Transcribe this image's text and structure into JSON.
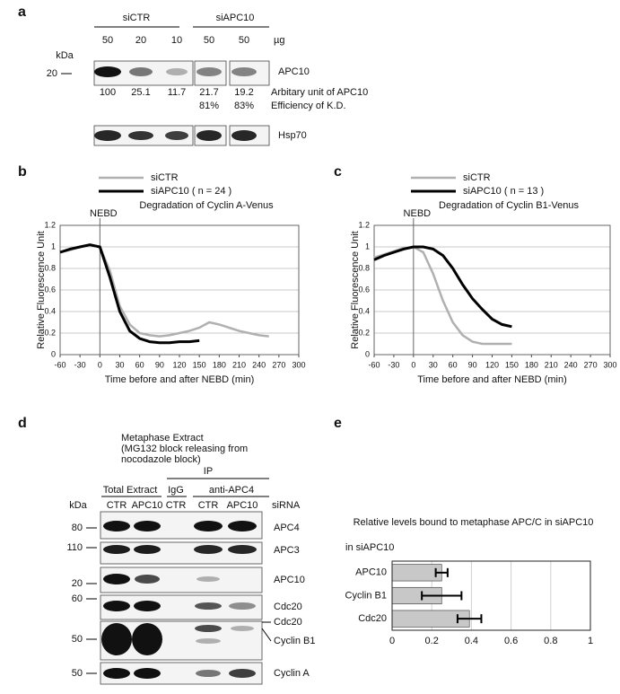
{
  "panel_labels": [
    "a",
    "b",
    "c",
    "d",
    "e"
  ],
  "blot_a": {
    "groups": [
      "siCTR",
      "siAPC10"
    ],
    "lanes": [
      "50",
      "20",
      "10",
      "50",
      "50"
    ],
    "unit": "µg",
    "kda": "kDa",
    "marker": "20",
    "target": "APC10",
    "quant": [
      "100",
      "25.1",
      "11.7",
      "21.7",
      "19.2"
    ],
    "quant_label": "Arbitary unit of APC10",
    "efficiency": [
      "81%",
      "83%"
    ],
    "efficiency_label": "Efficiency of K.D.",
    "loading": "Hsp70"
  },
  "blot_d": {
    "title": [
      "Metaphase Extract",
      "(MG132 block releasing from",
      "nocodazole block)"
    ],
    "ip": "IP",
    "headers": [
      "Total Extract",
      "IgG",
      "anti-APC4"
    ],
    "lanes": [
      "CTR",
      "APC10",
      "CTR",
      "CTR",
      "APC10"
    ],
    "sirna": "siRNA",
    "kda": "kDa",
    "rows": [
      {
        "label": "APC4",
        "marker": "80"
      },
      {
        "label": "APC3",
        "marker": "110"
      },
      {
        "label": "APC10",
        "marker": "20"
      },
      {
        "label": "Cdc20",
        "marker": "60"
      },
      {
        "label": "Cdc20"
      },
      {
        "label": "Cyclin B1",
        "marker": "50"
      },
      {
        "label": "Cyclin A",
        "marker": "50"
      }
    ]
  },
  "chart_data": [
    {
      "type": "line",
      "title": "Degradation of Cyclin A-Venus",
      "annotation": {
        "text": "NEBD",
        "x": 0
      },
      "xlabel": "Time before and after NEBD (min)",
      "ylabel": "Relative Fluorescence Unit",
      "x": [
        -60,
        -45,
        -30,
        -15,
        0,
        15,
        30,
        45,
        60,
        75,
        90,
        105,
        120,
        135,
        150,
        165,
        180,
        195,
        210,
        225,
        240,
        255,
        270
      ],
      "xlim": [
        -60,
        300
      ],
      "xticks": [
        -60,
        -30,
        0,
        30,
        60,
        90,
        120,
        150,
        180,
        210,
        240,
        270,
        300
      ],
      "ylim": [
        0,
        1.2
      ],
      "yticks": [
        0,
        0.2,
        0.4,
        0.6,
        0.8,
        1,
        1.2
      ],
      "grid": true,
      "series": [
        {
          "name": "siCTR",
          "color": "#b0b0b0",
          "values": [
            0.95,
            0.97,
            1.0,
            1.02,
            1.0,
            0.78,
            0.45,
            0.28,
            0.2,
            0.18,
            0.17,
            0.18,
            0.2,
            0.22,
            0.25,
            0.3,
            0.28,
            0.25,
            0.22,
            0.2,
            0.18,
            0.17,
            null
          ]
        },
        {
          "name": "siAPC10 ( n = 24 )",
          "color": "#000000",
          "values": [
            0.95,
            0.98,
            1.0,
            1.02,
            1.0,
            0.72,
            0.4,
            0.22,
            0.15,
            0.12,
            0.11,
            0.11,
            0.12,
            0.12,
            0.13,
            null,
            null,
            null,
            null,
            null,
            null,
            null,
            null
          ]
        }
      ]
    },
    {
      "type": "line",
      "title": "Degradation of Cyclin B1-Venus",
      "annotation": {
        "text": "NEBD",
        "x": 0
      },
      "xlabel": "Time before and after NEBD (min)",
      "ylabel": "Relative Fluorescence Unit",
      "x": [
        -60,
        -45,
        -30,
        -15,
        0,
        15,
        30,
        45,
        60,
        75,
        90,
        105,
        120,
        135,
        150,
        165,
        180,
        195,
        210,
        225,
        240,
        255,
        270
      ],
      "xlim": [
        -60,
        300
      ],
      "xticks": [
        -60,
        -30,
        0,
        30,
        60,
        90,
        120,
        150,
        180,
        210,
        240,
        270,
        300
      ],
      "ylim": [
        0,
        1.2
      ],
      "yticks": [
        0,
        0.2,
        0.4,
        0.6,
        0.8,
        1,
        1.2
      ],
      "grid": true,
      "series": [
        {
          "name": "siCTR",
          "color": "#b0b0b0",
          "values": [
            0.9,
            0.93,
            0.96,
            0.99,
            1.0,
            0.95,
            0.75,
            0.5,
            0.3,
            0.18,
            0.12,
            0.1,
            0.1,
            0.1,
            0.1,
            null,
            null,
            null,
            null,
            null,
            null,
            null,
            null
          ]
        },
        {
          "name": "siAPC10 ( n = 13 )",
          "color": "#000000",
          "values": [
            0.88,
            0.92,
            0.95,
            0.98,
            1.0,
            1.0,
            0.98,
            0.92,
            0.8,
            0.65,
            0.52,
            0.42,
            0.33,
            0.28,
            0.26,
            null,
            null,
            null,
            null,
            null,
            null,
            null,
            null
          ]
        }
      ]
    },
    {
      "type": "hbar",
      "title": "Relative levels bound to metaphase APC/C in siAPC10",
      "label": "in siAPC10",
      "categories": [
        "APC10",
        "Cyclin B1",
        "Cdc20"
      ],
      "values": [
        0.25,
        0.25,
        0.39
      ],
      "errors": [
        0.03,
        0.1,
        0.06
      ],
      "color": "#c8c8c8",
      "xlim": [
        0,
        1
      ],
      "xticks": [
        0,
        0.2,
        0.4,
        0.6,
        0.8,
        1
      ],
      "grid": true
    }
  ]
}
